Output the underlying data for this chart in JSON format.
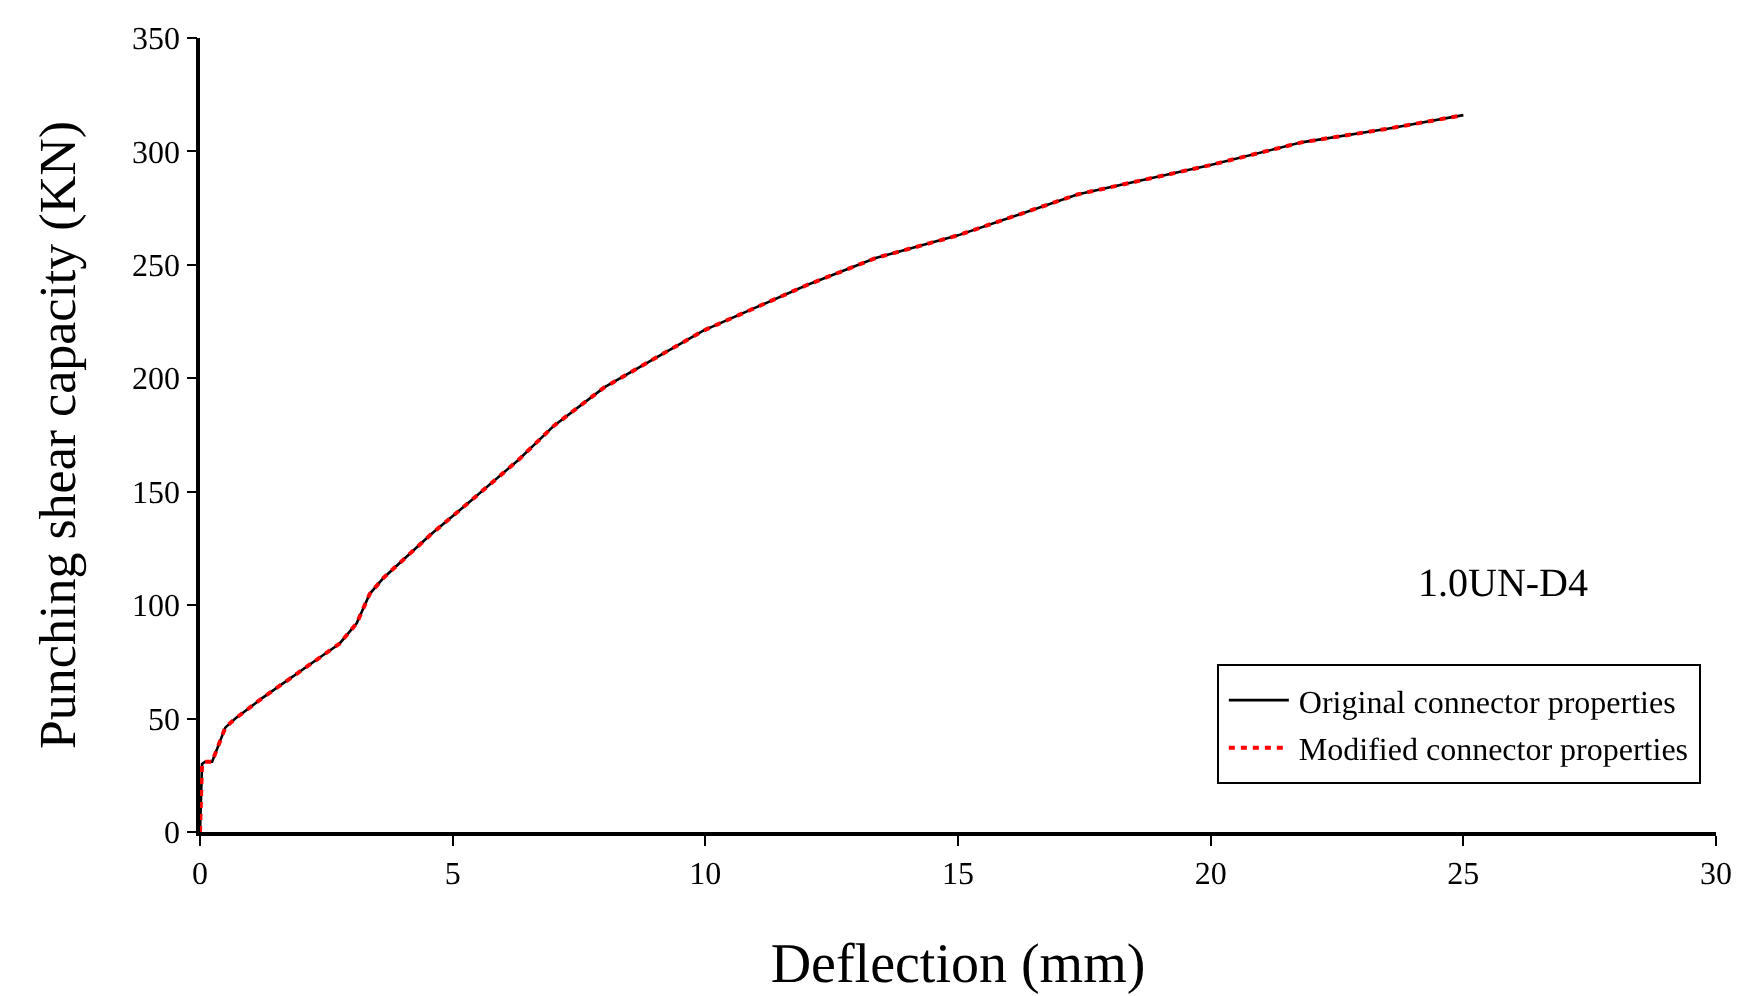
{
  "chart_data": {
    "type": "line",
    "xlabel": "Deflection (mm)",
    "ylabel": "Punching shear capacity (KN)",
    "x": [
      0,
      0.04,
      0.1,
      0.24,
      0.5,
      0.7,
      1.23,
      2.44,
      2.76,
      3.1,
      3.36,
      3.63,
      4.56,
      5.36,
      6.3,
      7,
      8,
      9.96,
      12,
      13.37,
      15,
      17.36,
      20,
      21.8,
      23.5,
      25
    ],
    "series": [
      {
        "name": "Original connector properties",
        "color": "#000000",
        "line_style": "solid",
        "values": [
          0,
          30,
          31,
          31,
          46,
          50,
          59,
          78,
          83,
          92,
          105,
          112,
          131,
          146,
          164,
          179,
          196,
          221,
          241,
          253,
          263,
          281,
          294,
          304,
          310,
          316
        ]
      },
      {
        "name": "Modified connector properties",
        "color": "#ff0000",
        "line_style": "dotted",
        "values": [
          0,
          30,
          31,
          31,
          46,
          50,
          59,
          78,
          83,
          92,
          105,
          112,
          131,
          146,
          164,
          179,
          196,
          221,
          241,
          253,
          263,
          281,
          294,
          304,
          310,
          316
        ]
      }
    ],
    "xlim": [
      0,
      30
    ],
    "xticks": [
      0,
      5,
      10,
      15,
      20,
      25,
      30
    ],
    "ylim": [
      0,
      350
    ],
    "yticks": [
      0,
      50,
      100,
      150,
      200,
      250,
      300,
      350
    ],
    "grid": false,
    "legend": "bottom right",
    "marker": "none",
    "annotations": [
      "1.0UN-D4"
    ]
  }
}
